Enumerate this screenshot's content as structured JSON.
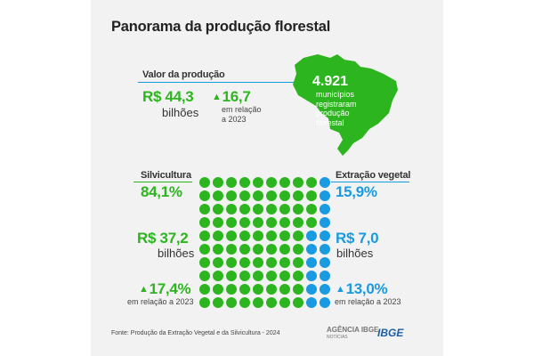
{
  "title": "Panorama da produção florestal",
  "valor": {
    "label": "Valor da produção",
    "amount": "R$ 44,3",
    "unit": "bilhões",
    "change": "16,7",
    "change_note_1": "em relação",
    "change_note_2": "a 2023"
  },
  "municipios": {
    "count": "4.921",
    "line1": "municípios",
    "line2": "registraram",
    "line3": "produção",
    "line4": "florestal"
  },
  "silvicultura": {
    "label": "Silvicultura",
    "share": "84,1%",
    "amount": "R$ 37,2",
    "unit": "bilhões",
    "change": "17,4%",
    "change_note": "em relação a 2023"
  },
  "extracao": {
    "label": "Extração vegetal",
    "share": "15,9%",
    "amount": "R$ 7,0",
    "unit": "bilhões",
    "change": "13,0%",
    "change_note": "em relação a 2023"
  },
  "dot_grid": {
    "total": 100,
    "silvicultura_count": 84,
    "extracao_count": 16
  },
  "colors": {
    "green": "#2db51f",
    "blue": "#1a9ae0"
  },
  "icons": {
    "up": "▲"
  },
  "footer": {
    "source": "Fonte: Produção da Extração Vegetal e da Silvicultura - 2024",
    "logo_agencia": "AGÊNCIA IBGE",
    "logo_agencia_sub": "NOTÍCIAS",
    "logo_ibge": "IBGE"
  }
}
